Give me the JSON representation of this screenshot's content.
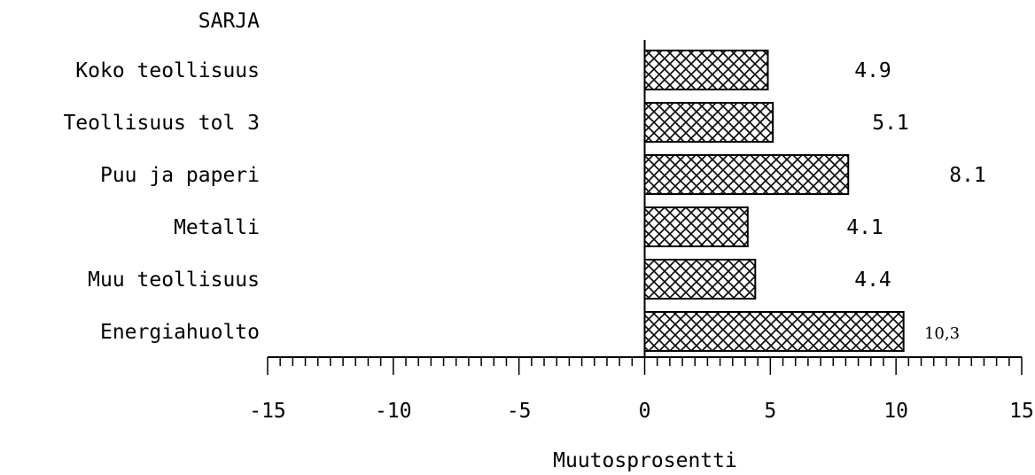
{
  "chart_data": {
    "type": "bar",
    "orientation": "horizontal",
    "category_header": "SARJA",
    "categories": [
      "Koko teollisuus",
      "Teollisuus tol 3",
      "Puu ja paperi",
      "Metalli",
      "Muu teollisuus",
      "Energiahuolto"
    ],
    "values": [
      4.9,
      5.1,
      8.1,
      4.1,
      4.4,
      10.3
    ],
    "value_labels": [
      "4.9",
      "5.1",
      "8.1",
      "4.1",
      "4.4",
      "10,3"
    ],
    "xlabel": "Muutosprosentti",
    "xlim": [
      -15,
      15
    ],
    "xticks": [
      -15,
      -10,
      -5,
      0,
      5,
      10,
      15
    ],
    "xtick_labels": [
      "-15",
      "-10",
      "-5",
      "0",
      "5",
      "10",
      "15"
    ],
    "minor_tick_step": 0.5,
    "bar_fill": "crosshatch",
    "grid": false,
    "legend": "none"
  }
}
